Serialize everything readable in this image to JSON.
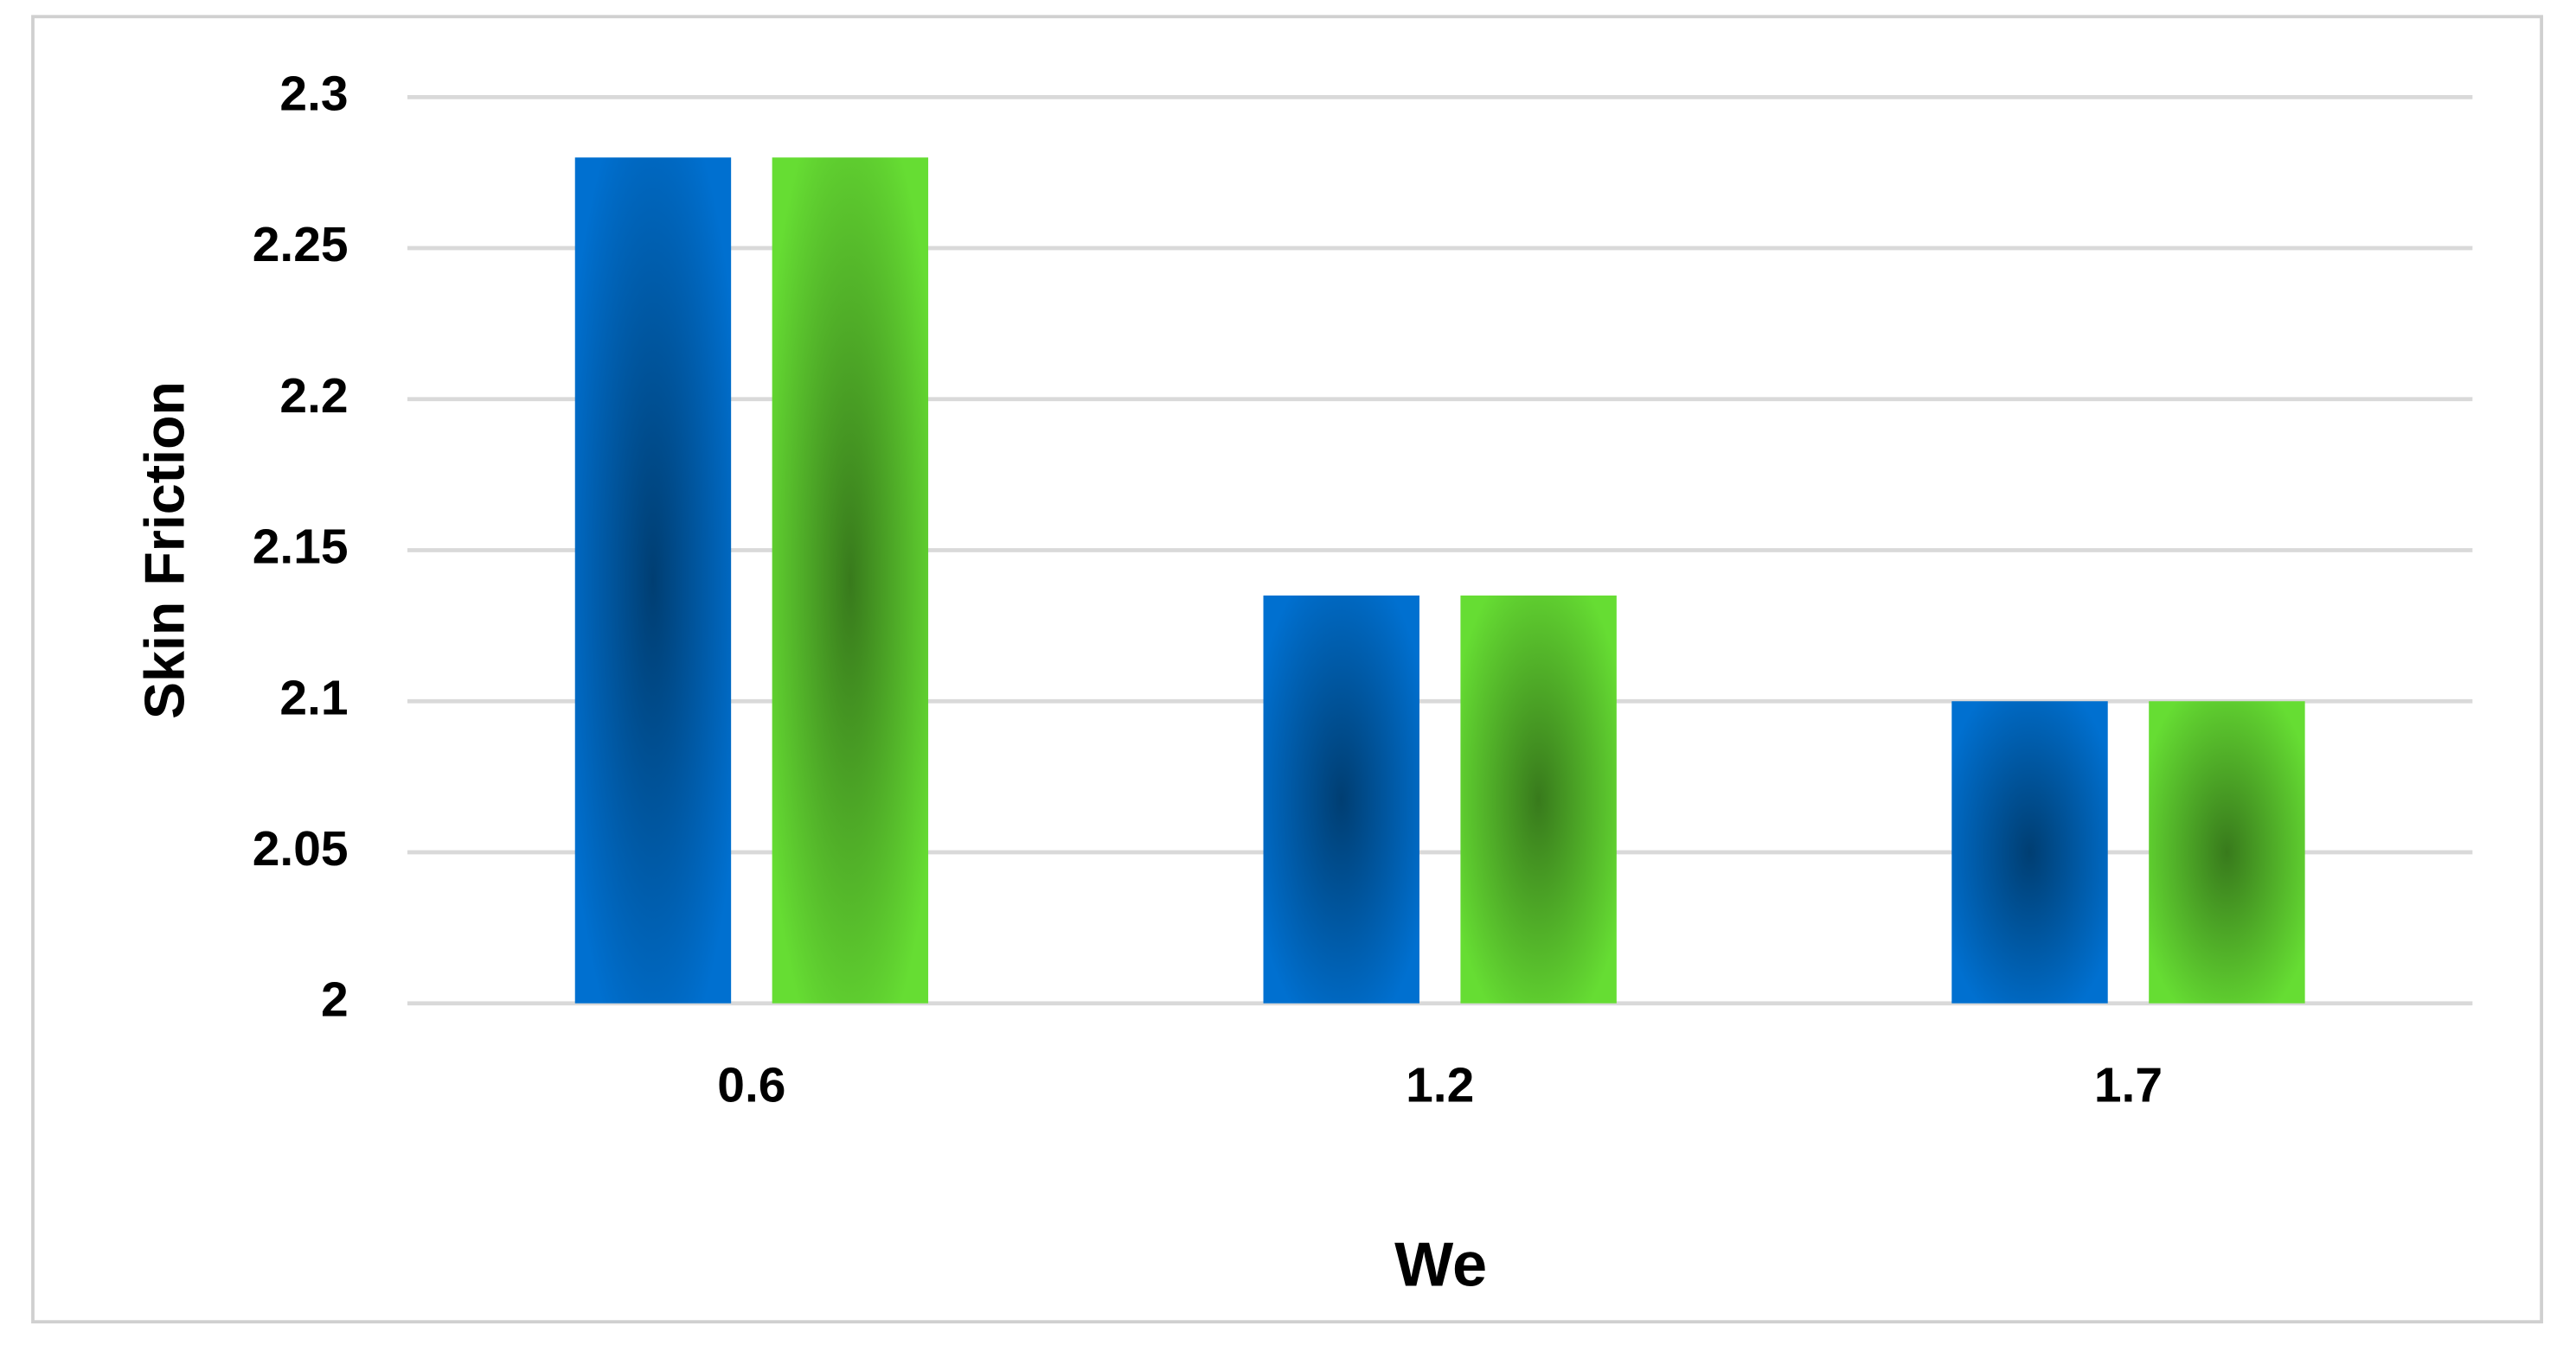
{
  "chart_data": {
    "type": "bar",
    "x_label": "We",
    "y_label": "Skin Friction",
    "categories": [
      "0.6",
      "1.2",
      "1.7"
    ],
    "series": [
      {
        "color": "#0070d0",
        "values": [
          2.28,
          2.135,
          2.1
        ]
      },
      {
        "color": "#66dd33",
        "values": [
          2.28,
          2.135,
          2.1
        ]
      }
    ],
    "ylim": [
      2,
      2.3
    ],
    "yticks": [
      2,
      2.05,
      2.1,
      2.15,
      2.2,
      2.25,
      2.3
    ],
    "grid": true
  }
}
